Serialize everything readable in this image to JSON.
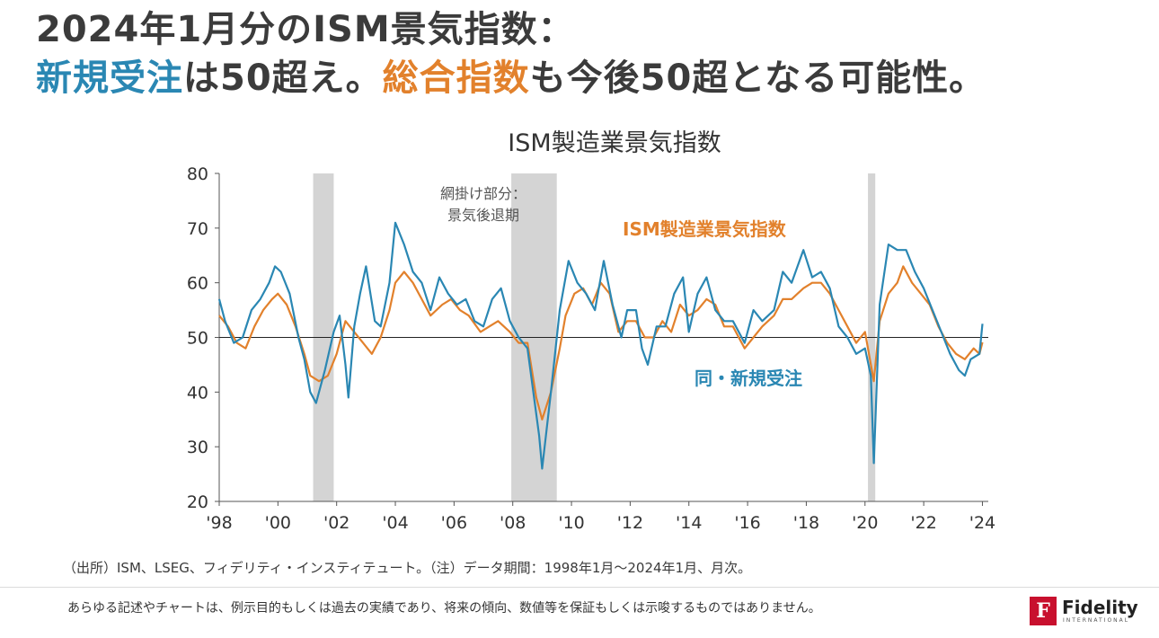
{
  "headline": {
    "line1": "2024年1月分のISM景気指数：",
    "line2_part1": "新規受注",
    "line2_part2": "は50超え。",
    "line2_part3": "総合指数",
    "line2_part4": "も今後50超となる可能性。"
  },
  "colors": {
    "headline_text": "#3b3b3b",
    "new_orders": "#2a87b3",
    "ism_index": "#e2812c",
    "recession_shade": "#d4d4d4",
    "axis": "#555555",
    "logo_red": "#c8102e"
  },
  "source_note": "（出所）ISM、LSEG、フィデリティ・インスティテュート。（注）データ期間：1998年1月～2024年1月、月次。",
  "disclaimer": "あらゆる記述やチャートは、例示目的もしくは過去の実績であり、将来の傾向、数値等を保証もしくは示唆するものではありません。",
  "logo": {
    "name": "Fidelity",
    "sub": "INTERNATIONAL",
    "mark": "F",
    "icon": "fidelity-logo-icon"
  },
  "chart_data": {
    "type": "line",
    "title": "ISM製造業景気指数",
    "xlabel": "",
    "ylabel": "",
    "xlim": [
      1998,
      2024.2
    ],
    "ylim": [
      20,
      80
    ],
    "y_ticks": [
      20,
      30,
      40,
      50,
      60,
      70,
      80
    ],
    "y_tick_labels": [
      "20",
      "30",
      "40",
      "50",
      "60",
      "70",
      "80"
    ],
    "x_ticks": [
      1998,
      2000,
      2002,
      2004,
      2006,
      2008,
      2010,
      2012,
      2014,
      2016,
      2018,
      2020,
      2022,
      2024
    ],
    "x_tick_labels": [
      "'98",
      "'00",
      "'02",
      "'04",
      "'06",
      "'08",
      "'10",
      "'12",
      "'14",
      "'16",
      "'18",
      "'20",
      "'22",
      "'24"
    ],
    "reference_line": 50,
    "grid": false,
    "shaded_periods": [
      {
        "start": 2001.2,
        "end": 2001.9
      },
      {
        "start": 2007.95,
        "end": 2009.5
      },
      {
        "start": 2020.1,
        "end": 2020.35
      }
    ],
    "shade_label": [
      "網掛け部分：",
      "景気後退期"
    ],
    "series": [
      {
        "name": "ISM製造業景気指数",
        "points": [
          [
            1998.0,
            54
          ],
          [
            1998.3,
            52
          ],
          [
            1998.6,
            49
          ],
          [
            1998.9,
            48
          ],
          [
            1999.2,
            52
          ],
          [
            1999.5,
            55
          ],
          [
            1999.8,
            57
          ],
          [
            2000.0,
            58
          ],
          [
            2000.3,
            56
          ],
          [
            2000.6,
            52
          ],
          [
            2000.9,
            47
          ],
          [
            2001.1,
            43
          ],
          [
            2001.4,
            42
          ],
          [
            2001.7,
            43
          ],
          [
            2002.0,
            47
          ],
          [
            2002.3,
            53
          ],
          [
            2002.6,
            51
          ],
          [
            2002.9,
            49
          ],
          [
            2003.2,
            47
          ],
          [
            2003.5,
            50
          ],
          [
            2003.8,
            55
          ],
          [
            2004.0,
            60
          ],
          [
            2004.3,
            62
          ],
          [
            2004.6,
            60
          ],
          [
            2004.9,
            57
          ],
          [
            2005.2,
            54
          ],
          [
            2005.6,
            56
          ],
          [
            2005.9,
            57
          ],
          [
            2006.2,
            55
          ],
          [
            2006.5,
            54
          ],
          [
            2006.9,
            51
          ],
          [
            2007.2,
            52
          ],
          [
            2007.5,
            53
          ],
          [
            2007.9,
            51
          ],
          [
            2008.2,
            49
          ],
          [
            2008.5,
            49
          ],
          [
            2008.8,
            39
          ],
          [
            2009.0,
            35
          ],
          [
            2009.3,
            40
          ],
          [
            2009.6,
            48
          ],
          [
            2009.8,
            54
          ],
          [
            2010.1,
            58
          ],
          [
            2010.4,
            59
          ],
          [
            2010.7,
            56
          ],
          [
            2011.0,
            60
          ],
          [
            2011.3,
            58
          ],
          [
            2011.6,
            51
          ],
          [
            2011.9,
            53
          ],
          [
            2012.2,
            53
          ],
          [
            2012.5,
            50
          ],
          [
            2012.8,
            50
          ],
          [
            2013.1,
            53
          ],
          [
            2013.4,
            51
          ],
          [
            2013.7,
            56
          ],
          [
            2014.0,
            54
          ],
          [
            2014.3,
            55
          ],
          [
            2014.6,
            57
          ],
          [
            2014.9,
            56
          ],
          [
            2015.2,
            52
          ],
          [
            2015.5,
            52
          ],
          [
            2015.9,
            48
          ],
          [
            2016.2,
            50
          ],
          [
            2016.5,
            52
          ],
          [
            2016.9,
            54
          ],
          [
            2017.2,
            57
          ],
          [
            2017.5,
            57
          ],
          [
            2017.9,
            59
          ],
          [
            2018.2,
            60
          ],
          [
            2018.5,
            60
          ],
          [
            2018.8,
            58
          ],
          [
            2019.1,
            55
          ],
          [
            2019.4,
            52
          ],
          [
            2019.7,
            49
          ],
          [
            2020.0,
            51
          ],
          [
            2020.3,
            42
          ],
          [
            2020.5,
            53
          ],
          [
            2020.8,
            58
          ],
          [
            2021.1,
            60
          ],
          [
            2021.3,
            63
          ],
          [
            2021.6,
            60
          ],
          [
            2021.9,
            58
          ],
          [
            2022.2,
            56
          ],
          [
            2022.5,
            52
          ],
          [
            2022.8,
            49
          ],
          [
            2023.1,
            47
          ],
          [
            2023.4,
            46
          ],
          [
            2023.7,
            48
          ],
          [
            2023.9,
            47
          ],
          [
            2024.0,
            49.1
          ]
        ]
      },
      {
        "name": "同・新規受注",
        "points": [
          [
            1998.0,
            57
          ],
          [
            1998.2,
            53
          ],
          [
            1998.5,
            49
          ],
          [
            1998.8,
            50
          ],
          [
            1999.1,
            55
          ],
          [
            1999.4,
            57
          ],
          [
            1999.7,
            60
          ],
          [
            1999.9,
            63
          ],
          [
            2000.1,
            62
          ],
          [
            2000.4,
            58
          ],
          [
            2000.7,
            50
          ],
          [
            2000.9,
            46
          ],
          [
            2001.1,
            40
          ],
          [
            2001.3,
            38
          ],
          [
            2001.6,
            44
          ],
          [
            2001.9,
            51
          ],
          [
            2002.1,
            54
          ],
          [
            2002.3,
            45
          ],
          [
            2002.4,
            39
          ],
          [
            2002.6,
            52
          ],
          [
            2002.8,
            58
          ],
          [
            2003.0,
            63
          ],
          [
            2003.3,
            53
          ],
          [
            2003.5,
            52
          ],
          [
            2003.8,
            60
          ],
          [
            2004.0,
            71
          ],
          [
            2004.3,
            67
          ],
          [
            2004.6,
            62
          ],
          [
            2004.9,
            60
          ],
          [
            2005.2,
            55
          ],
          [
            2005.5,
            61
          ],
          [
            2005.8,
            58
          ],
          [
            2006.1,
            56
          ],
          [
            2006.4,
            57
          ],
          [
            2006.7,
            53
          ],
          [
            2007.0,
            52
          ],
          [
            2007.3,
            57
          ],
          [
            2007.6,
            59
          ],
          [
            2007.9,
            53
          ],
          [
            2008.2,
            50
          ],
          [
            2008.5,
            48
          ],
          [
            2008.7,
            40
          ],
          [
            2008.9,
            32
          ],
          [
            2009.0,
            26
          ],
          [
            2009.3,
            40
          ],
          [
            2009.6,
            55
          ],
          [
            2009.9,
            64
          ],
          [
            2010.2,
            60
          ],
          [
            2010.5,
            58
          ],
          [
            2010.8,
            55
          ],
          [
            2011.1,
            64
          ],
          [
            2011.4,
            56
          ],
          [
            2011.7,
            50
          ],
          [
            2011.9,
            55
          ],
          [
            2012.2,
            55
          ],
          [
            2012.4,
            48
          ],
          [
            2012.6,
            45
          ],
          [
            2012.9,
            52
          ],
          [
            2013.2,
            52
          ],
          [
            2013.5,
            58
          ],
          [
            2013.8,
            61
          ],
          [
            2014.0,
            51
          ],
          [
            2014.3,
            58
          ],
          [
            2014.6,
            61
          ],
          [
            2014.9,
            55
          ],
          [
            2015.2,
            53
          ],
          [
            2015.5,
            53
          ],
          [
            2015.9,
            49
          ],
          [
            2016.2,
            55
          ],
          [
            2016.5,
            53
          ],
          [
            2016.9,
            55
          ],
          [
            2017.2,
            62
          ],
          [
            2017.5,
            60
          ],
          [
            2017.9,
            66
          ],
          [
            2018.2,
            61
          ],
          [
            2018.5,
            62
          ],
          [
            2018.8,
            59
          ],
          [
            2019.1,
            52
          ],
          [
            2019.4,
            50
          ],
          [
            2019.7,
            47
          ],
          [
            2020.0,
            48
          ],
          [
            2020.2,
            43
          ],
          [
            2020.3,
            27
          ],
          [
            2020.5,
            56
          ],
          [
            2020.8,
            67
          ],
          [
            2021.1,
            66
          ],
          [
            2021.4,
            66
          ],
          [
            2021.7,
            62
          ],
          [
            2022.0,
            59
          ],
          [
            2022.3,
            55
          ],
          [
            2022.6,
            51
          ],
          [
            2022.9,
            47
          ],
          [
            2023.2,
            44
          ],
          [
            2023.4,
            43
          ],
          [
            2023.6,
            46
          ],
          [
            2023.9,
            47
          ],
          [
            2024.0,
            52.5
          ]
        ]
      }
    ],
    "annotations": [
      {
        "text": "ISM製造業景気指数",
        "series": 0
      },
      {
        "text": "同・新規受注",
        "series": 1
      }
    ]
  }
}
